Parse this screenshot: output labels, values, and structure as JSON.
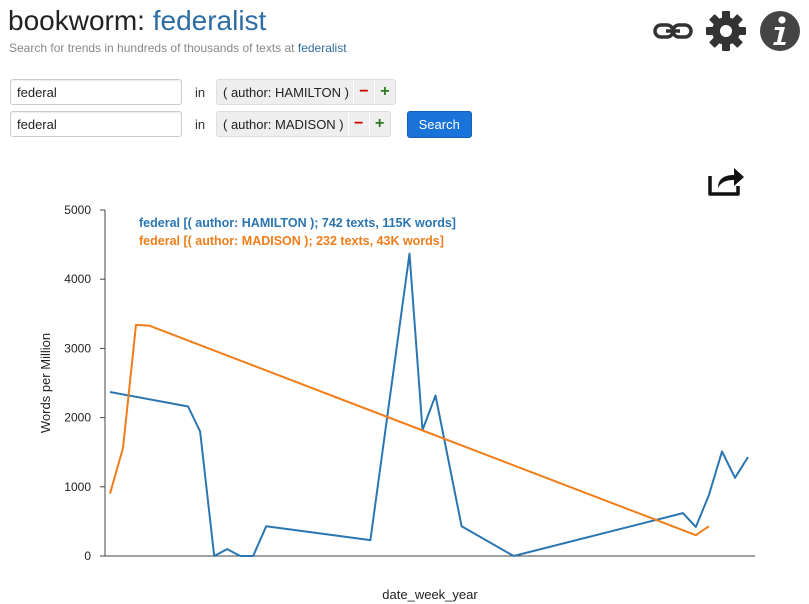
{
  "header": {
    "app_name": "bookworm:",
    "corpus_name": "federalist",
    "subtitle_prefix": "Search for trends in hundreds of thousands of texts at",
    "subtitle_link": "federalist"
  },
  "toolbar_icons": [
    "link-icon",
    "gear-icon",
    "info-icon"
  ],
  "queries": [
    {
      "term": "federal",
      "in_label": "in",
      "limit": "( author: HAMILTON )",
      "minus": "−",
      "plus": "+"
    },
    {
      "term": "federal",
      "in_label": "in",
      "limit": "( author: MADISON )",
      "minus": "−",
      "plus": "+"
    }
  ],
  "search_button": "Search",
  "export_icon": "share-export-icon",
  "colors": {
    "hamilton": "#2b76b0",
    "madison": "#f07d1a",
    "link": "#2e6da4",
    "search": "#1a73d9"
  },
  "chart_data": {
    "type": "line",
    "xlabel": "date_week_year",
    "ylabel": "Words per Million",
    "ylim": [
      0,
      5000
    ],
    "yticks": [
      0,
      1000,
      2000,
      3000,
      4000,
      5000
    ],
    "x_ticks_shown": false,
    "legend_position": "top-left",
    "series": [
      {
        "name": "federal [( author: HAMILTON ); 742 texts, 115K words]",
        "color": "#2b76b0",
        "points": [
          [
            0,
            2370
          ],
          [
            78,
            2160
          ],
          [
            90,
            1800
          ],
          [
            104,
            0
          ],
          [
            117,
            100
          ],
          [
            130,
            0
          ],
          [
            143,
            0
          ],
          [
            156,
            430
          ],
          [
            260,
            230
          ],
          [
            299,
            4370
          ],
          [
            312,
            1820
          ],
          [
            325,
            2320
          ],
          [
            351,
            430
          ],
          [
            403,
            0
          ],
          [
            572,
            620
          ],
          [
            585,
            420
          ],
          [
            598,
            880
          ],
          [
            611,
            1510
          ],
          [
            624,
            1130
          ],
          [
            637,
            1430
          ]
        ]
      },
      {
        "name": "federal [( author: MADISON ); 232 texts, 43K words]",
        "color": "#f07d1a",
        "points": [
          [
            0,
            900
          ],
          [
            13,
            1560
          ],
          [
            26,
            3340
          ],
          [
            39,
            3330
          ],
          [
            585,
            300
          ],
          [
            598,
            430
          ]
        ]
      }
    ]
  }
}
